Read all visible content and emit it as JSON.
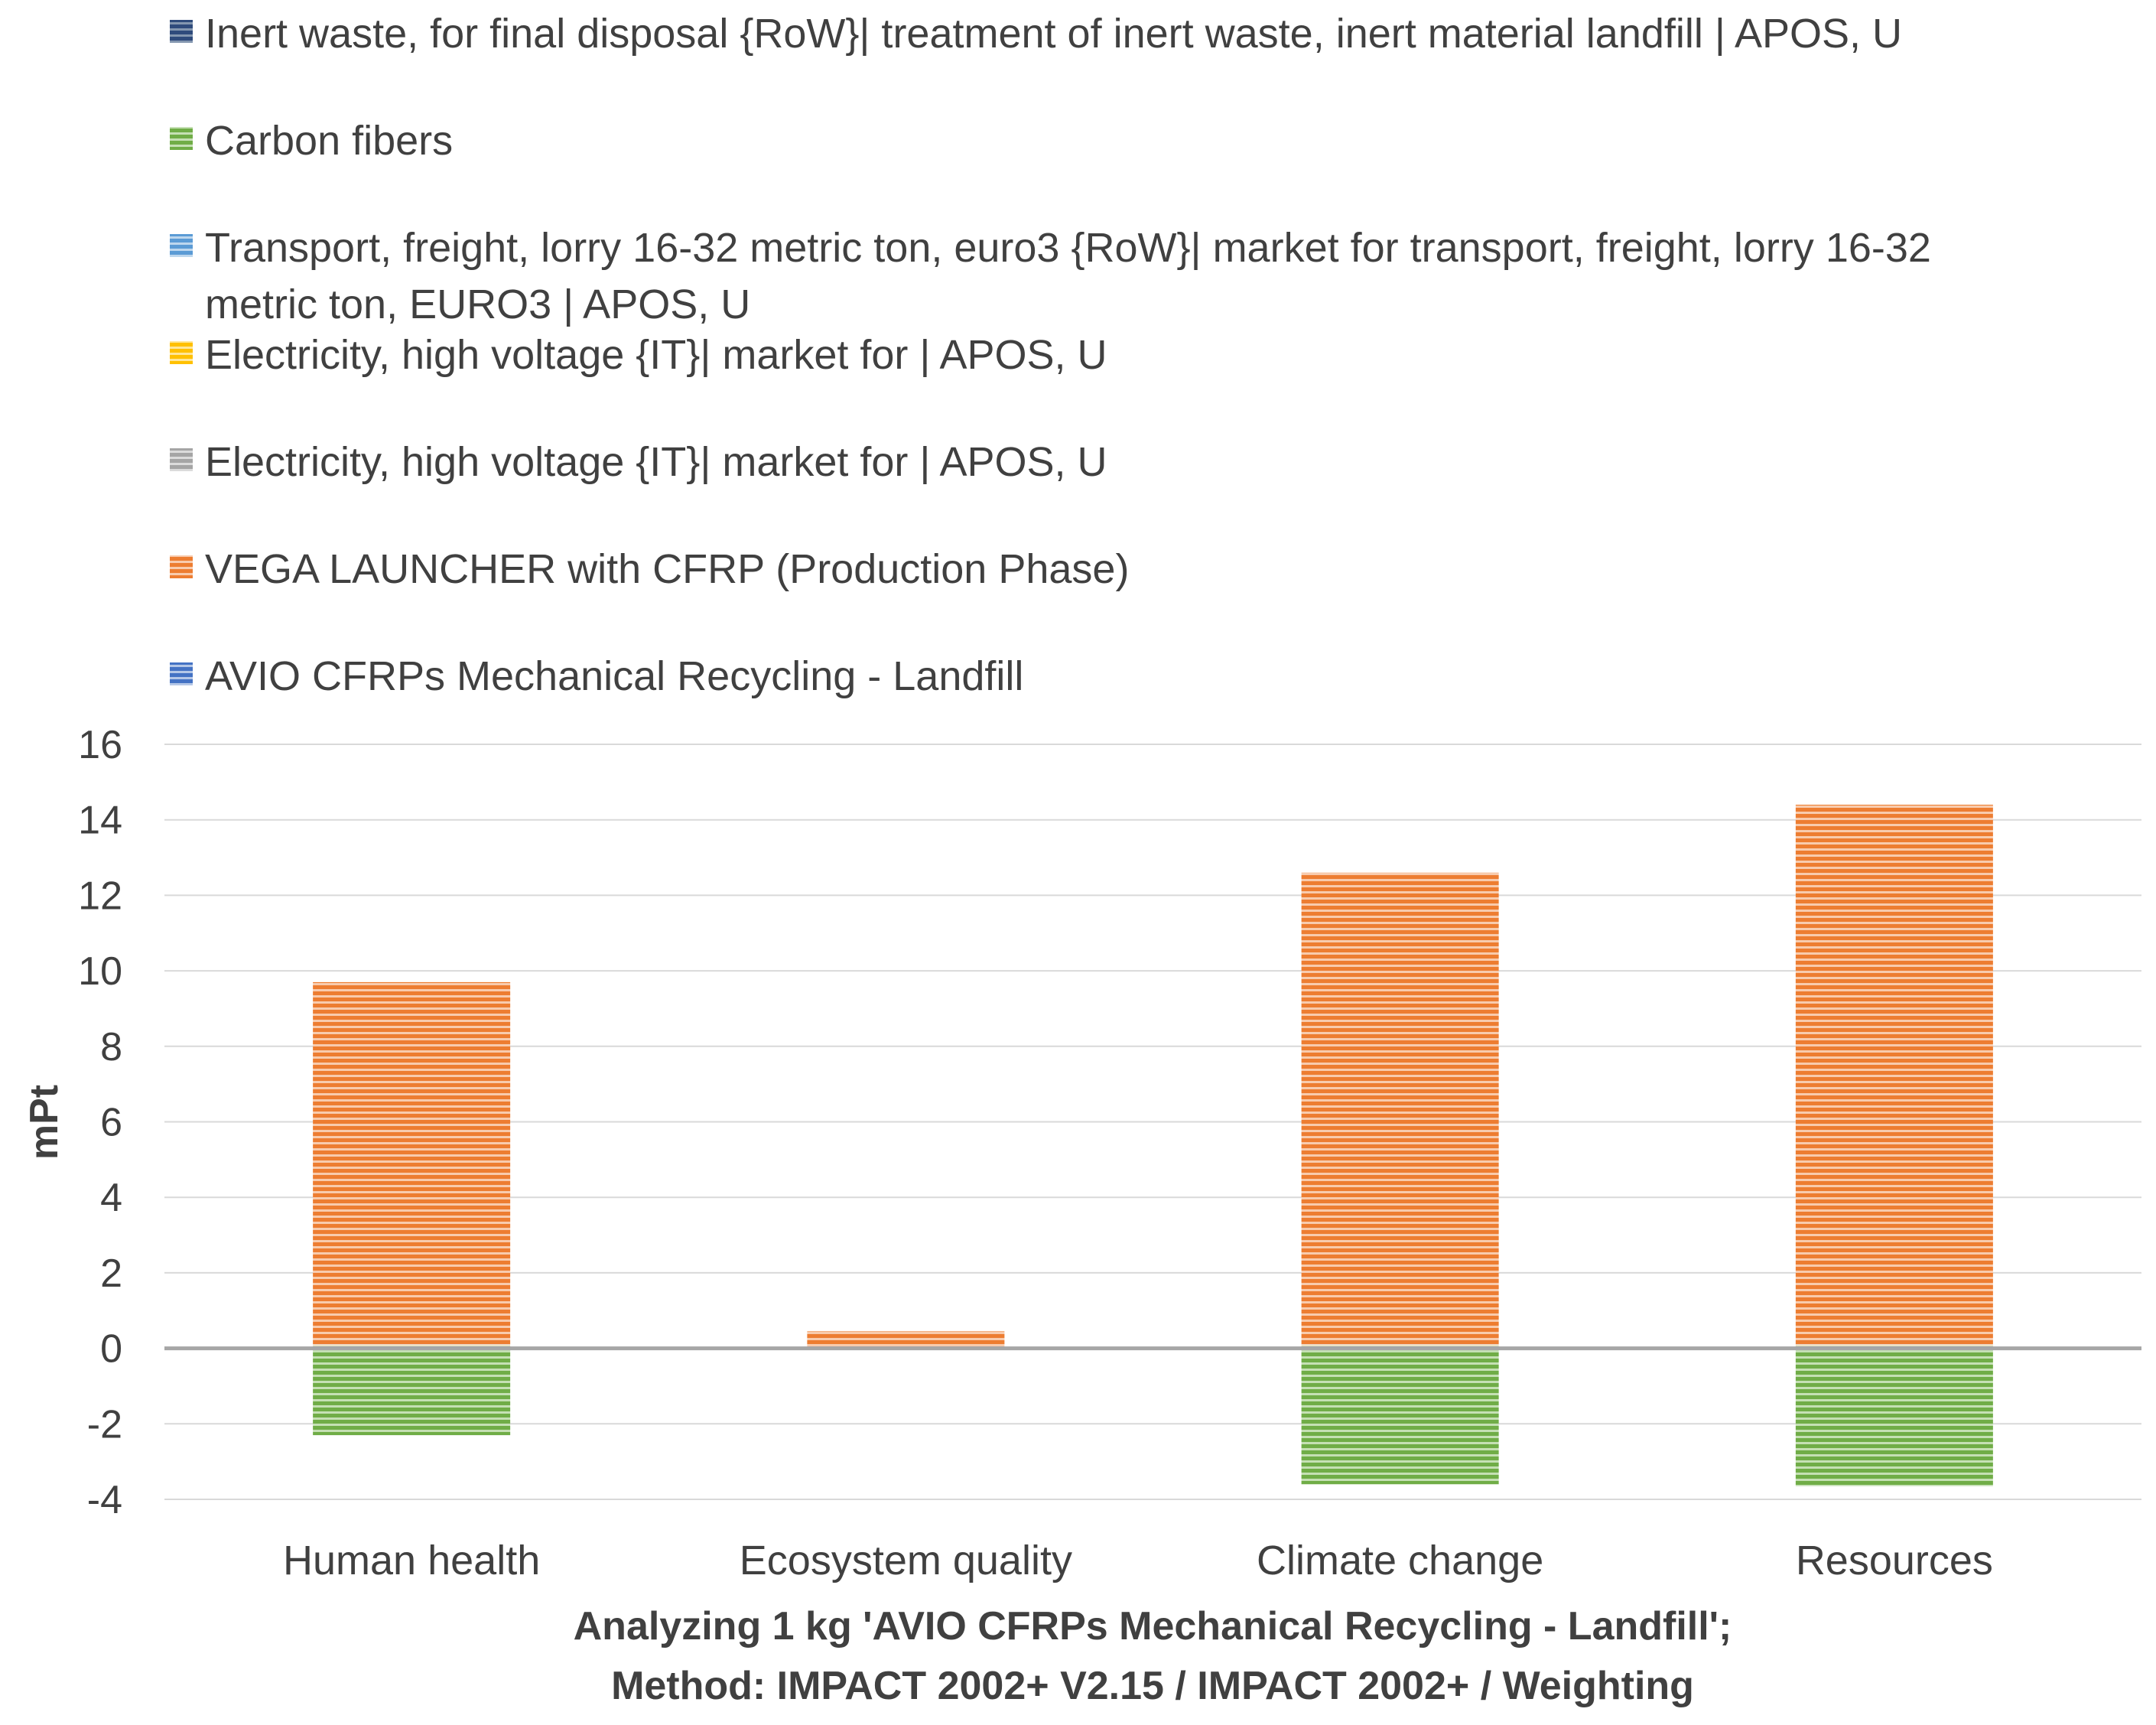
{
  "chart_data": {
    "type": "bar",
    "stacked": true,
    "title": "",
    "xlabel_lines": [
      "Analyzing 1 kg 'AVIO CFRPs Mechanical Recycling - Landfill';",
      "Method: IMPACT 2002+ V2.15 / IMPACT 2002+ / Weighting"
    ],
    "ylabel": "mPt",
    "ylim": [
      -4,
      16
    ],
    "yticks": [
      -4,
      -2,
      0,
      2,
      4,
      6,
      8,
      10,
      12,
      14,
      16
    ],
    "grid": true,
    "legend_position": "top",
    "categories": [
      "Human health",
      "Ecosystem quality",
      "Climate change",
      "Resources"
    ],
    "series": [
      {
        "name": "Inert waste, for final disposal {RoW}| treatment of inert waste, inert material landfill | APOS, U",
        "legend_lines": [
          "Inert waste, for final disposal {RoW}| treatment of inert waste, inert material landfill | APOS, U"
        ],
        "color": "#2f4b7c",
        "values": [
          0.05,
          0.02,
          0.05,
          0.05
        ]
      },
      {
        "name": "Carbon fibers",
        "legend_lines": [
          "Carbon fibers"
        ],
        "color": "#70ad47",
        "values": [
          -2.3,
          -0.02,
          -3.6,
          -3.65
        ]
      },
      {
        "name": "Transport, freight, lorry 16-32 metric ton, euro3 {RoW}| market for transport, freight, lorry 16-32 metric ton, EURO3 | APOS, U",
        "legend_lines": [
          "Transport, freight, lorry 16-32 metric ton, euro3 {RoW}| market for transport, freight, lorry 16-32",
          "metric ton, EURO3 | APOS, U"
        ],
        "color": "#5b9bd5",
        "values": [
          0.01,
          0.01,
          0.01,
          0.01
        ]
      },
      {
        "name": "Electricity, high voltage {IT}| market for | APOS, U",
        "legend_lines": [
          "Electricity, high voltage {IT}| market for | APOS, U"
        ],
        "color": "#ffc000",
        "values": [
          0.02,
          0.01,
          0.02,
          0.02
        ]
      },
      {
        "name": "Electricity, high voltage {IT}| market for | APOS, U",
        "legend_lines": [
          "Electricity, high voltage {IT}| market for | APOS, U"
        ],
        "color": "#a5a5a5",
        "values": [
          0.02,
          0.01,
          0.02,
          0.02
        ]
      },
      {
        "name": "VEGA LAUNCHER with CFRP (Production Phase)",
        "legend_lines": [
          "VEGA LAUNCHER with CFRP (Production Phase)"
        ],
        "color": "#ed7d31",
        "values": [
          9.6,
          0.4,
          12.5,
          14.3
        ]
      },
      {
        "name": "AVIO CFRPs Mechanical Recycling - Landfill",
        "legend_lines": [
          "AVIO CFRPs Mechanical Recycling - Landfill"
        ],
        "color": "#4472c4",
        "values": [
          0,
          0,
          0,
          0
        ]
      }
    ]
  }
}
